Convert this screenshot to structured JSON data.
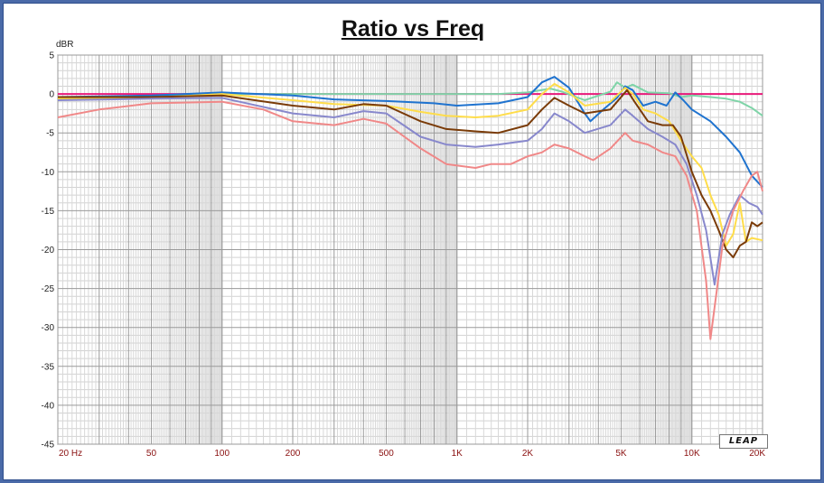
{
  "chart_data": {
    "type": "line",
    "title": "Ratio vs Freq",
    "ylabel": "dBR",
    "xscale": "log",
    "xlim": [
      20,
      20000
    ],
    "ylim": [
      -45,
      5
    ],
    "grid": true,
    "legend": "none",
    "y_ticks": [
      5,
      0,
      -5,
      -10,
      -15,
      -20,
      -25,
      -30,
      -35,
      -40,
      -45
    ],
    "x_ticks": [
      {
        "value": 20,
        "label": "20  Hz"
      },
      {
        "value": 50,
        "label": "50"
      },
      {
        "value": 100,
        "label": "100"
      },
      {
        "value": 200,
        "label": "200"
      },
      {
        "value": 500,
        "label": "500"
      },
      {
        "value": 1000,
        "label": "1K"
      },
      {
        "value": 2000,
        "label": "2K"
      },
      {
        "value": 5000,
        "label": "5K"
      },
      {
        "value": 10000,
        "label": "10K"
      },
      {
        "value": 20000,
        "label": "20K"
      }
    ],
    "series": [
      {
        "color": "#e8197a",
        "points": [
          [
            20,
            0
          ],
          [
            20000,
            0
          ]
        ]
      },
      {
        "color": "#7fd4a8",
        "points": [
          [
            20,
            -0.5
          ],
          [
            50,
            -0.3
          ],
          [
            100,
            0
          ],
          [
            200,
            0
          ],
          [
            500,
            0
          ],
          [
            1000,
            0
          ],
          [
            1500,
            0
          ],
          [
            2000,
            0.2
          ],
          [
            2500,
            0.7
          ],
          [
            2800,
            0.3
          ],
          [
            3500,
            -0.8
          ],
          [
            4500,
            0.3
          ],
          [
            4800,
            1.5
          ],
          [
            5200,
            0.8
          ],
          [
            5600,
            1.2
          ],
          [
            6500,
            0.2
          ],
          [
            8000,
            0.1
          ],
          [
            9000,
            -0.4
          ],
          [
            10000,
            -0.2
          ],
          [
            12000,
            -0.4
          ],
          [
            14000,
            -0.6
          ],
          [
            16000,
            -1.0
          ],
          [
            18000,
            -1.8
          ],
          [
            20000,
            -2.8
          ]
        ]
      },
      {
        "color": "#1f73cf",
        "points": [
          [
            20,
            -0.4
          ],
          [
            50,
            -0.2
          ],
          [
            100,
            0.2
          ],
          [
            200,
            -0.2
          ],
          [
            300,
            -0.7
          ],
          [
            500,
            -0.9
          ],
          [
            800,
            -1.2
          ],
          [
            1000,
            -1.5
          ],
          [
            1500,
            -1.2
          ],
          [
            2000,
            -0.4
          ],
          [
            2300,
            1.5
          ],
          [
            2600,
            2.2
          ],
          [
            3000,
            0.8
          ],
          [
            3500,
            -2.5
          ],
          [
            3700,
            -3.5
          ],
          [
            4200,
            -2.0
          ],
          [
            4800,
            -0.5
          ],
          [
            5200,
            1.0
          ],
          [
            5600,
            0.5
          ],
          [
            6200,
            -1.5
          ],
          [
            7000,
            -1.0
          ],
          [
            7800,
            -1.5
          ],
          [
            8500,
            0.2
          ],
          [
            9200,
            -0.8
          ],
          [
            10000,
            -2.0
          ],
          [
            12000,
            -3.5
          ],
          [
            14000,
            -5.5
          ],
          [
            16000,
            -7.5
          ],
          [
            18000,
            -10.5
          ],
          [
            20000,
            -12.0
          ]
        ]
      },
      {
        "color": "#ffdd4a",
        "points": [
          [
            20,
            -0.6
          ],
          [
            50,
            -0.5
          ],
          [
            100,
            0
          ],
          [
            200,
            -0.8
          ],
          [
            300,
            -1.3
          ],
          [
            500,
            -1.5
          ],
          [
            700,
            -2.3
          ],
          [
            900,
            -2.8
          ],
          [
            1200,
            -3.0
          ],
          [
            1500,
            -2.8
          ],
          [
            2000,
            -2.0
          ],
          [
            2300,
            0
          ],
          [
            2600,
            1.3
          ],
          [
            3000,
            0.2
          ],
          [
            3500,
            -1.5
          ],
          [
            4500,
            -1.0
          ],
          [
            5200,
            0.8
          ],
          [
            5600,
            0
          ],
          [
            6200,
            -2.0
          ],
          [
            7000,
            -2.5
          ],
          [
            8000,
            -3.5
          ],
          [
            9000,
            -6.0
          ],
          [
            10000,
            -8.0
          ],
          [
            11000,
            -9.5
          ],
          [
            12000,
            -13.0
          ],
          [
            13000,
            -15.5
          ],
          [
            14000,
            -19.5
          ],
          [
            15000,
            -18.0
          ],
          [
            16000,
            -14.0
          ],
          [
            17000,
            -19.0
          ],
          [
            18000,
            -18.5
          ],
          [
            20000,
            -18.8
          ]
        ]
      },
      {
        "color": "#7a3b08",
        "points": [
          [
            20,
            -0.4
          ],
          [
            50,
            -0.4
          ],
          [
            100,
            -0.2
          ],
          [
            200,
            -1.5
          ],
          [
            300,
            -2.0
          ],
          [
            400,
            -1.3
          ],
          [
            500,
            -1.5
          ],
          [
            700,
            -3.5
          ],
          [
            900,
            -4.5
          ],
          [
            1200,
            -4.8
          ],
          [
            1500,
            -5.0
          ],
          [
            2000,
            -4.0
          ],
          [
            2300,
            -2.0
          ],
          [
            2600,
            -0.5
          ],
          [
            3000,
            -1.5
          ],
          [
            3500,
            -2.5
          ],
          [
            4500,
            -2.0
          ],
          [
            5300,
            0.5
          ],
          [
            5700,
            -1.0
          ],
          [
            6500,
            -3.5
          ],
          [
            7500,
            -4.0
          ],
          [
            8300,
            -4.0
          ],
          [
            9000,
            -5.5
          ],
          [
            10000,
            -10.0
          ],
          [
            11000,
            -13.0
          ],
          [
            12000,
            -15.0
          ],
          [
            13000,
            -17.5
          ],
          [
            14000,
            -20.0
          ],
          [
            15000,
            -21.0
          ],
          [
            16000,
            -19.5
          ],
          [
            17000,
            -19.0
          ],
          [
            18000,
            -16.5
          ],
          [
            19000,
            -17.0
          ],
          [
            20000,
            -16.5
          ]
        ]
      },
      {
        "color": "#8888cc",
        "points": [
          [
            20,
            -0.8
          ],
          [
            50,
            -0.6
          ],
          [
            100,
            -0.5
          ],
          [
            200,
            -2.5
          ],
          [
            300,
            -3.0
          ],
          [
            400,
            -2.2
          ],
          [
            500,
            -2.5
          ],
          [
            700,
            -5.5
          ],
          [
            900,
            -6.5
          ],
          [
            1200,
            -6.8
          ],
          [
            1500,
            -6.5
          ],
          [
            2000,
            -6.0
          ],
          [
            2300,
            -4.5
          ],
          [
            2600,
            -2.5
          ],
          [
            3000,
            -3.5
          ],
          [
            3500,
            -5.0
          ],
          [
            4500,
            -4.0
          ],
          [
            5200,
            -2.0
          ],
          [
            5600,
            -2.8
          ],
          [
            6500,
            -4.5
          ],
          [
            7500,
            -5.5
          ],
          [
            8500,
            -6.5
          ],
          [
            9500,
            -9.0
          ],
          [
            10500,
            -13.0
          ],
          [
            11500,
            -17.5
          ],
          [
            12500,
            -24.5
          ],
          [
            13500,
            -18.0
          ],
          [
            14500,
            -15.5
          ],
          [
            16000,
            -13.0
          ],
          [
            17500,
            -14.0
          ],
          [
            19000,
            -14.5
          ],
          [
            20000,
            -15.5
          ]
        ]
      },
      {
        "color": "#f08888",
        "points": [
          [
            20,
            -3.0
          ],
          [
            30,
            -2.0
          ],
          [
            50,
            -1.2
          ],
          [
            100,
            -1.0
          ],
          [
            150,
            -2.0
          ],
          [
            200,
            -3.5
          ],
          [
            300,
            -4.0
          ],
          [
            400,
            -3.2
          ],
          [
            500,
            -3.8
          ],
          [
            700,
            -7.0
          ],
          [
            900,
            -9.0
          ],
          [
            1200,
            -9.5
          ],
          [
            1400,
            -9.0
          ],
          [
            1700,
            -9.0
          ],
          [
            2000,
            -8.0
          ],
          [
            2300,
            -7.5
          ],
          [
            2600,
            -6.5
          ],
          [
            3000,
            -7.0
          ],
          [
            3500,
            -8.0
          ],
          [
            3800,
            -8.5
          ],
          [
            4500,
            -7.0
          ],
          [
            5200,
            -5.0
          ],
          [
            5600,
            -6.0
          ],
          [
            6500,
            -6.5
          ],
          [
            7500,
            -7.5
          ],
          [
            8500,
            -8.0
          ],
          [
            9500,
            -10.5
          ],
          [
            10500,
            -15.0
          ],
          [
            11500,
            -24.0
          ],
          [
            12000,
            -31.5
          ],
          [
            12800,
            -25.0
          ],
          [
            13500,
            -19.5
          ],
          [
            15000,
            -15.0
          ],
          [
            16500,
            -12.5
          ],
          [
            18000,
            -10.5
          ],
          [
            19000,
            -10.0
          ],
          [
            20000,
            -12.5
          ]
        ]
      }
    ]
  },
  "logo_text": "LEAP"
}
